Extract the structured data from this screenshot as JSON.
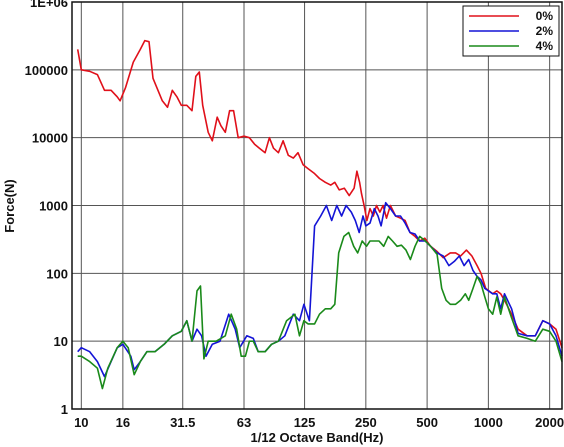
{
  "chart_data": {
    "type": "line",
    "title": "",
    "xlabel": "1/12 Octave Band(Hz)",
    "ylabel": "Force(N)",
    "xscale": "log",
    "yscale": "log",
    "xlim": [
      9,
      2300
    ],
    "ylim": [
      1,
      1000000
    ],
    "xticks": [
      10,
      16,
      31.5,
      63,
      125,
      250,
      500,
      1000,
      2000
    ],
    "xtick_labels": [
      "10",
      "16",
      "31.5",
      "63",
      "125",
      "250",
      "500",
      "1000",
      "2000"
    ],
    "yticks": [
      1,
      10,
      100,
      1000,
      10000,
      100000,
      1000000
    ],
    "ytick_labels": [
      "1",
      "10",
      "100",
      "1000",
      "10000",
      "100000",
      "1E+06"
    ],
    "grid": true,
    "legend_position": "top-right",
    "series": [
      {
        "name": "0%",
        "color": "#e0101a",
        "points": [
          [
            9.6,
            200000
          ],
          [
            10,
            100000
          ],
          [
            11,
            95000
          ],
          [
            12,
            85000
          ],
          [
            13,
            50000
          ],
          [
            14,
            50000
          ],
          [
            15,
            40000
          ],
          [
            15.5,
            35000
          ],
          [
            16.5,
            55000
          ],
          [
            18,
            130000
          ],
          [
            19.5,
            200000
          ],
          [
            20.5,
            270000
          ],
          [
            21.5,
            260000
          ],
          [
            22.5,
            75000
          ],
          [
            25,
            35000
          ],
          [
            26.5,
            28000
          ],
          [
            28,
            50000
          ],
          [
            29.5,
            40000
          ],
          [
            31,
            30000
          ],
          [
            33,
            30000
          ],
          [
            35,
            25000
          ],
          [
            36.5,
            80000
          ],
          [
            38,
            93000
          ],
          [
            39.5,
            30000
          ],
          [
            42,
            12000
          ],
          [
            44,
            9000
          ],
          [
            46.5,
            20000
          ],
          [
            48.5,
            15000
          ],
          [
            51,
            12000
          ],
          [
            53.5,
            25000
          ],
          [
            56,
            25000
          ],
          [
            59,
            10000
          ],
          [
            63,
            10500
          ],
          [
            67,
            10000
          ],
          [
            71,
            8000
          ],
          [
            75,
            7000
          ],
          [
            80,
            6000
          ],
          [
            84,
            10000
          ],
          [
            88,
            7000
          ],
          [
            93,
            6000
          ],
          [
            98,
            9000
          ],
          [
            104,
            5500
          ],
          [
            110,
            5000
          ],
          [
            116,
            6000
          ],
          [
            123,
            4000
          ],
          [
            130,
            3500
          ],
          [
            139,
            3000
          ],
          [
            148,
            2500
          ],
          [
            158,
            2200
          ],
          [
            168,
            2000
          ],
          [
            176,
            2200
          ],
          [
            185,
            1700
          ],
          [
            196,
            1800
          ],
          [
            207,
            1400
          ],
          [
            219,
            1800
          ],
          [
            226,
            3200
          ],
          [
            233,
            2200
          ],
          [
            238,
            1500
          ],
          [
            245,
            1000
          ],
          [
            253,
            600
          ],
          [
            262,
            900
          ],
          [
            272,
            700
          ],
          [
            282,
            1000
          ],
          [
            293,
            800
          ],
          [
            304,
            1000
          ],
          [
            316,
            650
          ],
          [
            330,
            1000
          ],
          [
            350,
            700
          ],
          [
            370,
            650
          ],
          [
            390,
            600
          ],
          [
            412,
            400
          ],
          [
            436,
            350
          ],
          [
            460,
            300
          ],
          [
            487,
            330
          ],
          [
            520,
            250
          ],
          [
            560,
            210
          ],
          [
            600,
            170
          ],
          [
            650,
            200
          ],
          [
            690,
            200
          ],
          [
            730,
            180
          ],
          [
            780,
            220
          ],
          [
            830,
            180
          ],
          [
            880,
            130
          ],
          [
            920,
            100
          ],
          [
            970,
            60
          ],
          [
            1050,
            50
          ],
          [
            1100,
            55
          ],
          [
            1150,
            50
          ],
          [
            1200,
            40
          ],
          [
            1300,
            25
          ],
          [
            1400,
            15
          ],
          [
            1550,
            12
          ],
          [
            1700,
            12
          ],
          [
            1850,
            20
          ],
          [
            2000,
            18
          ],
          [
            2150,
            15
          ],
          [
            2300,
            8
          ]
        ]
      },
      {
        "name": "2%",
        "color": "#1414d6",
        "points": [
          [
            9.6,
            7
          ],
          [
            10,
            8
          ],
          [
            11,
            7
          ],
          [
            12,
            5
          ],
          [
            13,
            3
          ],
          [
            14,
            5
          ],
          [
            15,
            8
          ],
          [
            16,
            9
          ],
          [
            17.5,
            6
          ],
          [
            18.2,
            3.8
          ],
          [
            19.5,
            5
          ],
          [
            21,
            7
          ],
          [
            23,
            7
          ],
          [
            25.5,
            9
          ],
          [
            28,
            12
          ],
          [
            31,
            14
          ],
          [
            33,
            20
          ],
          [
            35,
            10
          ],
          [
            37,
            15
          ],
          [
            39,
            12
          ],
          [
            41,
            6
          ],
          [
            44,
            9
          ],
          [
            48,
            10
          ],
          [
            53,
            25
          ],
          [
            57,
            15
          ],
          [
            60,
            8
          ],
          [
            65,
            12
          ],
          [
            70,
            11
          ],
          [
            74,
            7
          ],
          [
            80,
            7
          ],
          [
            86,
            9
          ],
          [
            93,
            10
          ],
          [
            100,
            12
          ],
          [
            110,
            25
          ],
          [
            118,
            20
          ],
          [
            124,
            35
          ],
          [
            132,
            20
          ],
          [
            140,
            500
          ],
          [
            150,
            700
          ],
          [
            160,
            1000
          ],
          [
            170,
            600
          ],
          [
            180,
            1000
          ],
          [
            190,
            700
          ],
          [
            200,
            1000
          ],
          [
            212,
            800
          ],
          [
            222,
            600
          ],
          [
            232,
            400
          ],
          [
            242,
            700
          ],
          [
            250,
            500
          ],
          [
            262,
            550
          ],
          [
            275,
            900
          ],
          [
            287,
            700
          ],
          [
            297,
            500
          ],
          [
            313,
            1100
          ],
          [
            330,
            900
          ],
          [
            350,
            700
          ],
          [
            370,
            700
          ],
          [
            390,
            550
          ],
          [
            412,
            400
          ],
          [
            436,
            380
          ],
          [
            460,
            300
          ],
          [
            490,
            300
          ],
          [
            520,
            250
          ],
          [
            560,
            200
          ],
          [
            600,
            180
          ],
          [
            640,
            130
          ],
          [
            680,
            150
          ],
          [
            720,
            180
          ],
          [
            760,
            130
          ],
          [
            800,
            160
          ],
          [
            840,
            110
          ],
          [
            880,
            90
          ],
          [
            920,
            80
          ],
          [
            960,
            60
          ],
          [
            1000,
            55
          ],
          [
            1050,
            50
          ],
          [
            1100,
            50
          ],
          [
            1150,
            30
          ],
          [
            1200,
            50
          ],
          [
            1300,
            30
          ],
          [
            1400,
            13
          ],
          [
            1550,
            12
          ],
          [
            1700,
            12
          ],
          [
            1850,
            20
          ],
          [
            2000,
            18
          ],
          [
            2150,
            12
          ],
          [
            2300,
            6
          ]
        ]
      },
      {
        "name": "4%",
        "color": "#1a8a1a",
        "points": [
          [
            9.6,
            6
          ],
          [
            10,
            6
          ],
          [
            11,
            5
          ],
          [
            12,
            4
          ],
          [
            12.7,
            2
          ],
          [
            13.5,
            4
          ],
          [
            15,
            8
          ],
          [
            16,
            10
          ],
          [
            17,
            8
          ],
          [
            18.2,
            3.2
          ],
          [
            19.5,
            5
          ],
          [
            21,
            7
          ],
          [
            23,
            7
          ],
          [
            25.5,
            9
          ],
          [
            28,
            12
          ],
          [
            31,
            14
          ],
          [
            33,
            20
          ],
          [
            35,
            10
          ],
          [
            37,
            55
          ],
          [
            38.5,
            65
          ],
          [
            40,
            5.5
          ],
          [
            42,
            10
          ],
          [
            46,
            10
          ],
          [
            51,
            12
          ],
          [
            54.5,
            25
          ],
          [
            58,
            15
          ],
          [
            61,
            6
          ],
          [
            64,
            6
          ],
          [
            67,
            10
          ],
          [
            70,
            10
          ],
          [
            74,
            7
          ],
          [
            80,
            7
          ],
          [
            86,
            9
          ],
          [
            93,
            10
          ],
          [
            102,
            20
          ],
          [
            112,
            25
          ],
          [
            118,
            12
          ],
          [
            124,
            20
          ],
          [
            130,
            18
          ],
          [
            140,
            18
          ],
          [
            148,
            25
          ],
          [
            158,
            30
          ],
          [
            168,
            30
          ],
          [
            176,
            35
          ],
          [
            184,
            200
          ],
          [
            195,
            350
          ],
          [
            206,
            400
          ],
          [
            218,
            250
          ],
          [
            228,
            200
          ],
          [
            240,
            300
          ],
          [
            252,
            250
          ],
          [
            262,
            300
          ],
          [
            276,
            300
          ],
          [
            290,
            300
          ],
          [
            306,
            250
          ],
          [
            322,
            350
          ],
          [
            338,
            300
          ],
          [
            356,
            250
          ],
          [
            374,
            260
          ],
          [
            394,
            220
          ],
          [
            414,
            160
          ],
          [
            436,
            250
          ],
          [
            460,
            350
          ],
          [
            490,
            300
          ],
          [
            520,
            250
          ],
          [
            560,
            190
          ],
          [
            590,
            60
          ],
          [
            620,
            40
          ],
          [
            650,
            35
          ],
          [
            690,
            35
          ],
          [
            730,
            40
          ],
          [
            770,
            50
          ],
          [
            800,
            40
          ],
          [
            840,
            60
          ],
          [
            880,
            90
          ],
          [
            920,
            70
          ],
          [
            960,
            45
          ],
          [
            1000,
            30
          ],
          [
            1050,
            25
          ],
          [
            1100,
            45
          ],
          [
            1150,
            25
          ],
          [
            1200,
            45
          ],
          [
            1300,
            22
          ],
          [
            1400,
            12
          ],
          [
            1550,
            11
          ],
          [
            1700,
            10
          ],
          [
            1850,
            15
          ],
          [
            2000,
            14
          ],
          [
            2150,
            10
          ],
          [
            2300,
            5
          ]
        ]
      }
    ]
  }
}
